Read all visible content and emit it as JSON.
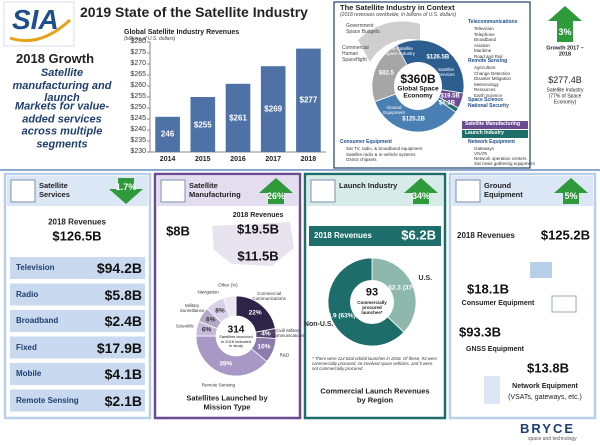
{
  "header": {
    "logo": "SIA",
    "title": "2019 State of the Satellite Industry",
    "growth_title": "2018 Growth",
    "growth_points": [
      "Satellite manufacturing and launch",
      "Markets for value-added services across multiple segments"
    ]
  },
  "revenue_chart": {
    "type": "bar",
    "title": "Global Satellite Industry Revenues",
    "subtitle": "(billions of U.S. dollars)",
    "categories": [
      "2014",
      "2015",
      "2016",
      "2017",
      "2018"
    ],
    "values": [
      246,
      255,
      261,
      269,
      277
    ],
    "value_labels": [
      "246",
      "$255",
      "$261",
      "$269",
      "$277"
    ],
    "color": "#4f72a6",
    "ylim": [
      230,
      280
    ],
    "yticks": [
      {
        "value": 230,
        "label": "$230"
      },
      {
        "value": 235,
        "label": "$235"
      },
      {
        "value": 240,
        "label": "$240"
      },
      {
        "value": 245,
        "label": "$245"
      },
      {
        "value": 250,
        "label": "$250"
      },
      {
        "value": 255,
        "label": "$255"
      },
      {
        "value": 260,
        "label": "$260"
      },
      {
        "value": 265,
        "label": "$265"
      },
      {
        "value": 270,
        "label": "$270"
      },
      {
        "value": 275,
        "label": "$275"
      },
      {
        "value": 280,
        "label": "$280"
      }
    ]
  },
  "context": {
    "title": "The Satellite Industry in Context",
    "subtitle": "(2018 revenues worldwide, in billions of U.S. dollars)",
    "outer_labels": [
      "Government Space Budgets",
      "Commercial Human Spaceflight"
    ],
    "center_value": "$360B",
    "center_label": "Global Space Economy",
    "chart": {
      "type": "pie",
      "categories": [
        "Non-Satellite Space Industry",
        "Satellite Services",
        "Satellite Manufacturing",
        "Launch Industry",
        "Ground Equipment"
      ],
      "values": [
        82.5,
        126.5,
        19.5,
        6.2,
        125.2
      ],
      "value_labels": [
        "$82.5",
        "$126.5B",
        "$19.5B",
        "$6.2B",
        "$125.2B"
      ],
      "colors": [
        "#a6a6a6",
        "#2c5d8f",
        "#6b4c93",
        "#1d6e6a",
        "#4a7fb3"
      ]
    },
    "details": [
      {
        "heading": "Telecommunications",
        "items": [
          "Television",
          "Telephone",
          "Broadband",
          "Aviation",
          "Maritime",
          "Road and Rail"
        ]
      },
      {
        "heading": "Remote Sensing",
        "items": [
          "Agriculture",
          "Change Detection",
          "Disaster Mitigation",
          "Meteorology",
          "Resources",
          "Earth Science"
        ]
      },
      {
        "heading": "Space Science",
        "items": []
      },
      {
        "heading": "National Security",
        "items": []
      }
    ],
    "network": {
      "heading": "Network Equipment",
      "items": [
        "Gateways",
        "VSATs",
        "Network operation centers",
        "Sat news gathering equipment"
      ]
    },
    "consumer": {
      "heading": "Consumer Equipment",
      "items": [
        "Sat TV, radio, & broadband equipment",
        "Satellite radio & in-vehicle systems",
        "GNSS chipsets"
      ]
    }
  },
  "context_growth": {
    "value": "3%",
    "label": "Growth 2017 – 2018",
    "total": "$277.4B",
    "total_label": "Satellite Industry (77% of Space Economy)"
  },
  "panels": [
    {
      "title": "Satellite Services",
      "change": "1.7%",
      "revenue_label": "2018 Revenues",
      "revenue": "$126.5B",
      "rows": [
        {
          "name": "Television",
          "value": "$94.2B"
        },
        {
          "name": "Radio",
          "value": "$5.8B"
        },
        {
          "name": "Broadband",
          "value": "$2.4B"
        },
        {
          "name": "Fixed",
          "value": "$17.9B"
        },
        {
          "name": "Mobile",
          "value": "$4.1B"
        },
        {
          "name": "Remote Sensing",
          "value": "$2.1B"
        }
      ]
    },
    {
      "title": "Satellite Manufacturing",
      "change": "26%",
      "revenue_label": "2018 Revenues",
      "revenue": "$19.5B",
      "figures": [
        "$8B",
        "$11.5B"
      ],
      "chart": {
        "type": "donut",
        "categories": [
          "Commercial Communications",
          "Civil/ Military Communications",
          "R&D",
          "Remote Sensing",
          "Scientific",
          "Military Surveillance",
          "Navigation",
          "Other (%)"
        ],
        "values": [
          22,
          4,
          10,
          39,
          6,
          6,
          8,
          5
        ],
        "value_labels": [
          "22%",
          "4%",
          "10%",
          "39%",
          "6%",
          "6%",
          "8%",
          null
        ],
        "colors": [
          "#2e2447",
          "#55456f",
          "#8c7cad",
          "#a898c6",
          "#c5bad9",
          "#b3a9c4",
          "#d9d1e8",
          "#ebe7f2"
        ],
        "center_value": "314",
        "center_label": "Satellites launched in 2018 indicated in study"
      },
      "caption": "Satellites Launched by Mission Type"
    },
    {
      "title": "Launch Industry",
      "change": "34%",
      "revenue_label": "2018 Revenues",
      "revenue": "$6.2B",
      "chart": {
        "type": "pie",
        "categories": [
          "U.S.",
          "Non-U.S."
        ],
        "values": [
          2.3,
          3.9
        ],
        "value_labels": [
          "$2.3 (37%)",
          "$3.9 (63%)"
        ],
        "colors": [
          "#8fb8ad",
          "#1d6e6a"
        ],
        "center_value": "93",
        "center_label": "Commercially procured launches*"
      },
      "footnote": "* There were 114 total orbital launches in 2018. Of these, 93 were commercially procured, 16 involved space vehicles, and 5 were not commercially procured",
      "caption": "Commercial Launch Revenues by Region"
    },
    {
      "title": "Ground Equipment",
      "change": "5%",
      "revenue_label": "2018 Revenues",
      "revenue": "$125.2B",
      "items": [
        {
          "value": "$18.1B",
          "label": "Consumer Equipment"
        },
        {
          "value": "$93.3B",
          "label": "GNSS Equipment"
        },
        {
          "value": "$13.8B",
          "label": "Network Equipment",
          "note": "(VSATs, gateways, etc.)"
        }
      ]
    }
  ],
  "footer": {
    "brand": "BRYCE",
    "tagline": "space and technology"
  }
}
